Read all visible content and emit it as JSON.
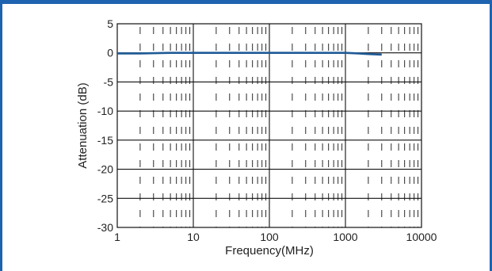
{
  "colors": {
    "frame": "#1e63b0",
    "series": "#1f5a96",
    "grid": "#111111"
  },
  "chart_data": {
    "type": "line",
    "xlabel": "Frequency(MHz)",
    "ylabel": "Attenuation (dB)",
    "xscale": "log",
    "xlim": [
      1,
      10000
    ],
    "ylim": [
      -30,
      5
    ],
    "grid": true,
    "x_ticks": [
      1,
      10,
      100,
      1000,
      10000
    ],
    "x_tick_labels": [
      "1",
      "10",
      "100",
      "1000",
      "10000"
    ],
    "y_ticks": [
      5,
      0,
      -5,
      -10,
      -15,
      -20,
      -25,
      -30
    ],
    "y_tick_labels": [
      "5",
      "0",
      "-5",
      "-10",
      "-15",
      "-20",
      "-25",
      "-30"
    ],
    "series": [
      {
        "x": [
          1,
          2,
          5,
          10,
          20,
          50,
          100,
          200,
          500,
          1000,
          1500,
          2000,
          3000
        ],
        "y": [
          -0.1,
          -0.1,
          0,
          0,
          0,
          0,
          0,
          0,
          0,
          0,
          -0.1,
          -0.2,
          -0.3
        ]
      }
    ]
  }
}
